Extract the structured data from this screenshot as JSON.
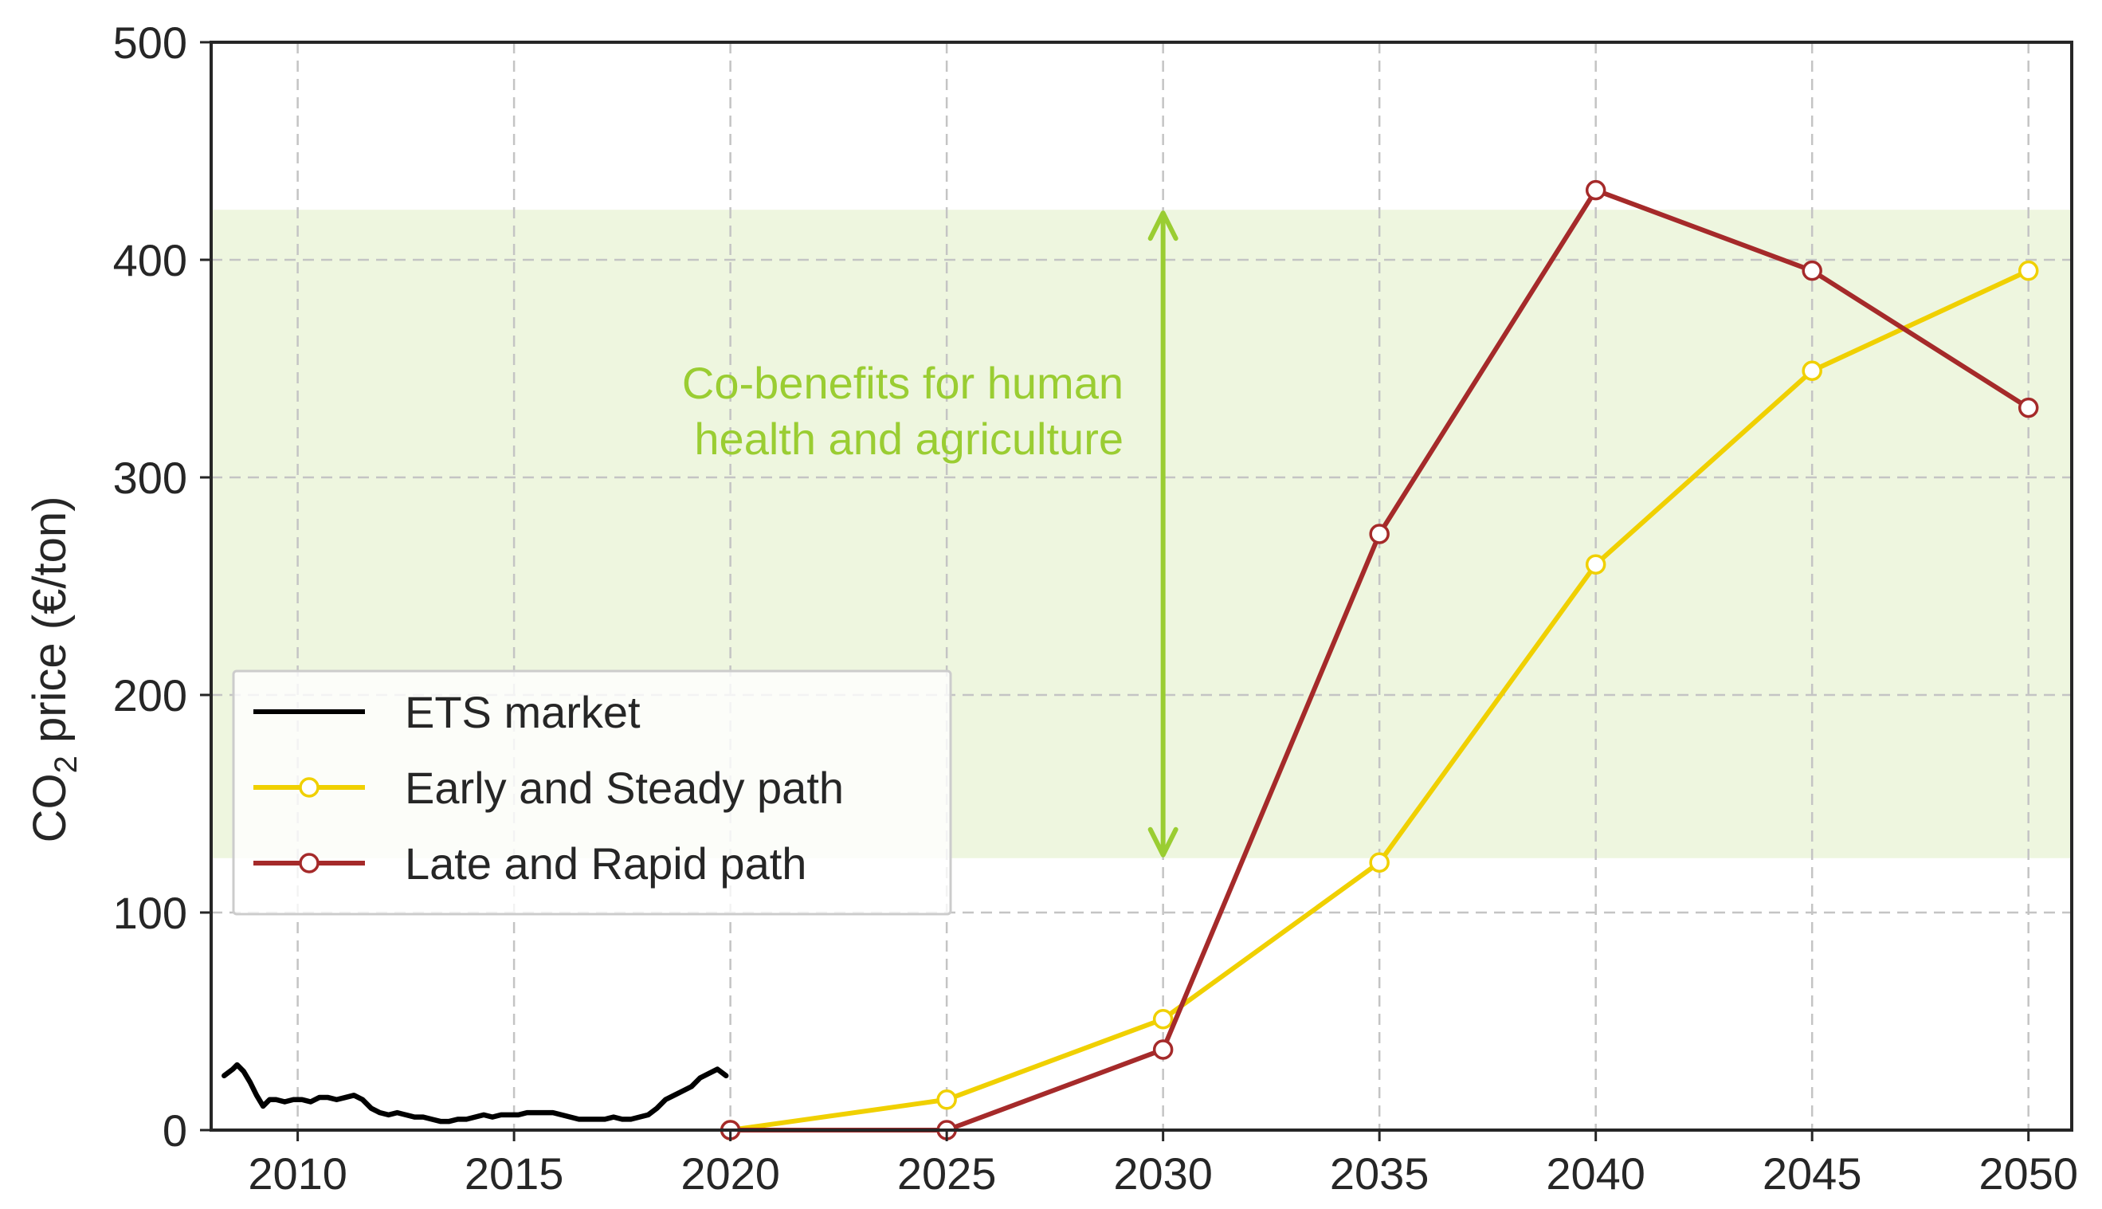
{
  "chart_data": {
    "type": "line",
    "ylabel_parts": [
      "CO",
      "2",
      " price (€/ton)"
    ],
    "xlim": [
      2008,
      2051
    ],
    "ylim": [
      0,
      500
    ],
    "x_ticks": [
      2010,
      2015,
      2020,
      2025,
      2030,
      2035,
      2040,
      2045,
      2050
    ],
    "y_ticks": [
      0,
      100,
      200,
      300,
      400,
      500
    ],
    "grid": true,
    "legend_placement": "lower-left",
    "band": {
      "y_min": 125,
      "y_max": 423,
      "color": "#eef6df"
    },
    "annotation": {
      "lines": [
        "Co-benefits for human",
        "health and agriculture"
      ],
      "arrow_x": 2030,
      "arrow_y": [
        125,
        423
      ],
      "color": "#9acd32"
    },
    "series": [
      {
        "name": "ETS market",
        "color": "#000000",
        "marker": false,
        "x": [
          2008.3,
          2008.5,
          2008.6,
          2008.75,
          2008.9,
          2009.05,
          2009.2,
          2009.35,
          2009.5,
          2009.7,
          2009.9,
          2010.1,
          2010.3,
          2010.5,
          2010.7,
          2010.9,
          2011.1,
          2011.3,
          2011.5,
          2011.7,
          2011.9,
          2012.1,
          2012.3,
          2012.5,
          2012.7,
          2012.9,
          2013.1,
          2013.3,
          2013.5,
          2013.7,
          2013.9,
          2014.1,
          2014.3,
          2014.5,
          2014.7,
          2014.9,
          2015.1,
          2015.3,
          2015.5,
          2015.7,
          2015.9,
          2016.1,
          2016.3,
          2016.5,
          2016.7,
          2016.9,
          2017.1,
          2017.3,
          2017.5,
          2017.7,
          2017.9,
          2018.1,
          2018.3,
          2018.5,
          2018.7,
          2018.9,
          2019.1,
          2019.3,
          2019.5,
          2019.7,
          2019.9
        ],
        "y": [
          25,
          28,
          30,
          27,
          22,
          16,
          11,
          14,
          14,
          13,
          14,
          14,
          13,
          15,
          15,
          14,
          15,
          16,
          14,
          10,
          8,
          7,
          8,
          7,
          6,
          6,
          5,
          4,
          4,
          5,
          5,
          6,
          7,
          6,
          7,
          7,
          7,
          8,
          8,
          8,
          8,
          7,
          6,
          5,
          5,
          5,
          5,
          6,
          5,
          5,
          6,
          7,
          10,
          14,
          16,
          18,
          20,
          24,
          26,
          28,
          25
        ]
      },
      {
        "name": "Early and Steady path",
        "color": "#f0d000",
        "marker": true,
        "x": [
          2020,
          2025,
          2030,
          2035,
          2040,
          2045,
          2050
        ],
        "y": [
          0,
          14,
          51,
          123,
          260,
          349,
          395
        ]
      },
      {
        "name": "Late and Rapid path",
        "color": "#a52a2a",
        "color_end": "#b8382b",
        "marker": true,
        "x": [
          2020,
          2025,
          2030,
          2035,
          2040,
          2045,
          2050
        ],
        "y": [
          0,
          0,
          37,
          274,
          432,
          395,
          332
        ]
      }
    ]
  }
}
